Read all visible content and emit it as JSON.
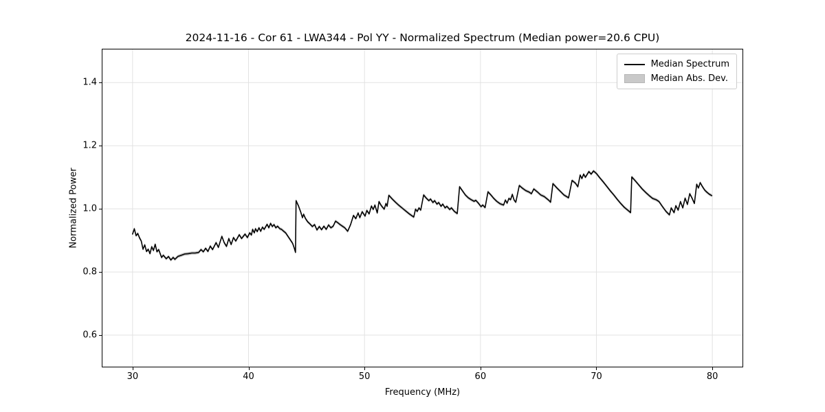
{
  "chart_data": {
    "type": "line",
    "title": "2024-11-16 - Cor 61 - LWA344 - Pol YY - Normalized Spectrum (Median power=20.6 CPU)",
    "xlabel": "Frequency (MHz)",
    "ylabel": "Normalized Power",
    "xlim": [
      27.4,
      82.6
    ],
    "ylim": [
      0.5,
      1.505
    ],
    "xticks": [
      30,
      40,
      50,
      60,
      70,
      80
    ],
    "yticks": [
      0.6,
      0.8,
      1.0,
      1.2,
      1.4
    ],
    "grid": true,
    "grid_color": "#e2e2e2",
    "frame_color": "#000000",
    "legend": {
      "position": "upper right",
      "entries": [
        {
          "label": "Median Spectrum",
          "type": "line",
          "color": "#000000"
        },
        {
          "label": "Median Abs. Dev.",
          "type": "patch",
          "color": "#c9c9c9"
        }
      ]
    },
    "mad_band": {
      "halfwidth": 0.005,
      "color": "#c3c3c3"
    },
    "series": [
      {
        "name": "Median Spectrum",
        "color": "#000000",
        "points": [
          [
            30.0,
            0.92
          ],
          [
            30.15,
            0.937
          ],
          [
            30.3,
            0.915
          ],
          [
            30.45,
            0.922
          ],
          [
            30.6,
            0.908
          ],
          [
            30.75,
            0.898
          ],
          [
            30.9,
            0.872
          ],
          [
            31.05,
            0.886
          ],
          [
            31.2,
            0.865
          ],
          [
            31.35,
            0.872
          ],
          [
            31.5,
            0.858
          ],
          [
            31.65,
            0.88
          ],
          [
            31.8,
            0.868
          ],
          [
            31.95,
            0.888
          ],
          [
            32.1,
            0.864
          ],
          [
            32.25,
            0.871
          ],
          [
            32.5,
            0.846
          ],
          [
            32.65,
            0.853
          ],
          [
            32.9,
            0.842
          ],
          [
            33.1,
            0.849
          ],
          [
            33.3,
            0.838
          ],
          [
            33.5,
            0.846
          ],
          [
            33.65,
            0.84
          ],
          [
            33.9,
            0.849
          ],
          [
            34.2,
            0.853
          ],
          [
            34.5,
            0.857
          ],
          [
            34.8,
            0.858
          ],
          [
            35.1,
            0.86
          ],
          [
            35.4,
            0.86
          ],
          [
            35.7,
            0.862
          ],
          [
            35.9,
            0.871
          ],
          [
            36.1,
            0.864
          ],
          [
            36.3,
            0.875
          ],
          [
            36.5,
            0.865
          ],
          [
            36.7,
            0.882
          ],
          [
            36.9,
            0.871
          ],
          [
            37.2,
            0.893
          ],
          [
            37.4,
            0.878
          ],
          [
            37.7,
            0.913
          ],
          [
            37.9,
            0.893
          ],
          [
            38.1,
            0.881
          ],
          [
            38.3,
            0.906
          ],
          [
            38.5,
            0.887
          ],
          [
            38.7,
            0.909
          ],
          [
            38.9,
            0.898
          ],
          [
            39.2,
            0.918
          ],
          [
            39.4,
            0.906
          ],
          [
            39.7,
            0.92
          ],
          [
            39.9,
            0.909
          ],
          [
            40.1,
            0.924
          ],
          [
            40.25,
            0.917
          ],
          [
            40.35,
            0.935
          ],
          [
            40.5,
            0.924
          ],
          [
            40.6,
            0.937
          ],
          [
            40.75,
            0.928
          ],
          [
            40.9,
            0.94
          ],
          [
            41.05,
            0.929
          ],
          [
            41.2,
            0.942
          ],
          [
            41.35,
            0.935
          ],
          [
            41.6,
            0.951
          ],
          [
            41.75,
            0.94
          ],
          [
            41.9,
            0.954
          ],
          [
            42.05,
            0.944
          ],
          [
            42.2,
            0.95
          ],
          [
            42.35,
            0.94
          ],
          [
            42.5,
            0.945
          ],
          [
            42.7,
            0.937
          ],
          [
            42.85,
            0.935
          ],
          [
            43.0,
            0.93
          ],
          [
            43.2,
            0.924
          ],
          [
            43.4,
            0.913
          ],
          [
            43.6,
            0.902
          ],
          [
            43.8,
            0.891
          ],
          [
            43.95,
            0.875
          ],
          [
            44.05,
            0.862
          ],
          [
            44.1,
            1.026
          ],
          [
            44.3,
            1.01
          ],
          [
            44.5,
            0.99
          ],
          [
            44.65,
            0.972
          ],
          [
            44.75,
            0.983
          ],
          [
            44.9,
            0.97
          ],
          [
            45.1,
            0.959
          ],
          [
            45.3,
            0.952
          ],
          [
            45.5,
            0.944
          ],
          [
            45.7,
            0.95
          ],
          [
            45.9,
            0.933
          ],
          [
            46.1,
            0.944
          ],
          [
            46.3,
            0.934
          ],
          [
            46.5,
            0.945
          ],
          [
            46.7,
            0.935
          ],
          [
            46.9,
            0.949
          ],
          [
            47.1,
            0.94
          ],
          [
            47.3,
            0.945
          ],
          [
            47.5,
            0.961
          ],
          [
            47.7,
            0.956
          ],
          [
            47.9,
            0.95
          ],
          [
            48.1,
            0.945
          ],
          [
            48.3,
            0.94
          ],
          [
            48.55,
            0.929
          ],
          [
            48.8,
            0.95
          ],
          [
            49.05,
            0.979
          ],
          [
            49.25,
            0.969
          ],
          [
            49.45,
            0.987
          ],
          [
            49.6,
            0.972
          ],
          [
            49.8,
            0.991
          ],
          [
            50.05,
            0.977
          ],
          [
            50.2,
            0.995
          ],
          [
            50.4,
            0.984
          ],
          [
            50.6,
            1.009
          ],
          [
            50.75,
            0.998
          ],
          [
            50.9,
            1.012
          ],
          [
            51.1,
            0.987
          ],
          [
            51.25,
            1.023
          ],
          [
            51.45,
            1.01
          ],
          [
            51.7,
            0.999
          ],
          [
            51.85,
            1.017
          ],
          [
            51.95,
            1.008
          ],
          [
            52.1,
            1.043
          ],
          [
            52.4,
            1.031
          ],
          [
            52.7,
            1.02
          ],
          [
            53.0,
            1.01
          ],
          [
            53.3,
            1.001
          ],
          [
            53.6,
            0.992
          ],
          [
            53.9,
            0.983
          ],
          [
            54.25,
            0.974
          ],
          [
            54.4,
            0.999
          ],
          [
            54.55,
            0.992
          ],
          [
            54.7,
            1.003
          ],
          [
            54.85,
            0.996
          ],
          [
            55.1,
            1.044
          ],
          [
            55.35,
            1.033
          ],
          [
            55.55,
            1.026
          ],
          [
            55.7,
            1.031
          ],
          [
            55.9,
            1.02
          ],
          [
            56.05,
            1.026
          ],
          [
            56.25,
            1.015
          ],
          [
            56.4,
            1.02
          ],
          [
            56.6,
            1.008
          ],
          [
            56.75,
            1.015
          ],
          [
            56.95,
            1.003
          ],
          [
            57.1,
            1.008
          ],
          [
            57.35,
            0.998
          ],
          [
            57.5,
            1.003
          ],
          [
            57.75,
            0.992
          ],
          [
            58.0,
            0.985
          ],
          [
            58.2,
            1.07
          ],
          [
            58.45,
            1.057
          ],
          [
            58.7,
            1.044
          ],
          [
            58.95,
            1.035
          ],
          [
            59.2,
            1.029
          ],
          [
            59.45,
            1.024
          ],
          [
            59.6,
            1.027
          ],
          [
            59.8,
            1.019
          ],
          [
            60.05,
            1.007
          ],
          [
            60.2,
            1.012
          ],
          [
            60.4,
            1.004
          ],
          [
            60.65,
            1.054
          ],
          [
            60.9,
            1.044
          ],
          [
            61.15,
            1.033
          ],
          [
            61.4,
            1.024
          ],
          [
            61.7,
            1.016
          ],
          [
            62.0,
            1.012
          ],
          [
            62.15,
            1.028
          ],
          [
            62.3,
            1.018
          ],
          [
            62.45,
            1.033
          ],
          [
            62.6,
            1.029
          ],
          [
            62.75,
            1.046
          ],
          [
            62.9,
            1.028
          ],
          [
            63.05,
            1.021
          ],
          [
            63.35,
            1.074
          ],
          [
            63.6,
            1.066
          ],
          [
            63.9,
            1.058
          ],
          [
            64.2,
            1.053
          ],
          [
            64.4,
            1.048
          ],
          [
            64.6,
            1.063
          ],
          [
            64.9,
            1.054
          ],
          [
            65.2,
            1.044
          ],
          [
            65.5,
            1.039
          ],
          [
            65.7,
            1.033
          ],
          [
            65.9,
            1.027
          ],
          [
            66.05,
            1.021
          ],
          [
            66.25,
            1.08
          ],
          [
            66.6,
            1.066
          ],
          [
            66.9,
            1.055
          ],
          [
            67.2,
            1.044
          ],
          [
            67.6,
            1.035
          ],
          [
            67.9,
            1.09
          ],
          [
            68.2,
            1.081
          ],
          [
            68.4,
            1.07
          ],
          [
            68.6,
            1.107
          ],
          [
            68.75,
            1.096
          ],
          [
            68.9,
            1.11
          ],
          [
            69.05,
            1.1
          ],
          [
            69.35,
            1.118
          ],
          [
            69.55,
            1.11
          ],
          [
            69.75,
            1.12
          ],
          [
            70.0,
            1.112
          ],
          [
            70.3,
            1.098
          ],
          [
            70.6,
            1.085
          ],
          [
            70.9,
            1.071
          ],
          [
            71.2,
            1.057
          ],
          [
            71.5,
            1.044
          ],
          [
            71.8,
            1.03
          ],
          [
            72.1,
            1.017
          ],
          [
            72.4,
            1.005
          ],
          [
            72.7,
            0.996
          ],
          [
            72.95,
            0.988
          ],
          [
            73.05,
            1.101
          ],
          [
            73.35,
            1.089
          ],
          [
            73.65,
            1.076
          ],
          [
            73.95,
            1.063
          ],
          [
            74.25,
            1.052
          ],
          [
            74.55,
            1.042
          ],
          [
            74.85,
            1.033
          ],
          [
            75.15,
            1.029
          ],
          [
            75.4,
            1.023
          ],
          [
            75.7,
            1.007
          ],
          [
            76.0,
            0.992
          ],
          [
            76.3,
            0.981
          ],
          [
            76.45,
            1.003
          ],
          [
            76.7,
            0.988
          ],
          [
            76.85,
            1.01
          ],
          [
            77.05,
            0.996
          ],
          [
            77.25,
            1.023
          ],
          [
            77.45,
            1.003
          ],
          [
            77.65,
            1.034
          ],
          [
            77.85,
            1.014
          ],
          [
            78.05,
            1.048
          ],
          [
            78.25,
            1.034
          ],
          [
            78.45,
            1.017
          ],
          [
            78.65,
            1.078
          ],
          [
            78.8,
            1.066
          ],
          [
            78.95,
            1.083
          ],
          [
            79.15,
            1.07
          ],
          [
            79.35,
            1.059
          ],
          [
            79.55,
            1.052
          ],
          [
            79.75,
            1.046
          ],
          [
            79.95,
            1.042
          ]
        ]
      }
    ]
  }
}
